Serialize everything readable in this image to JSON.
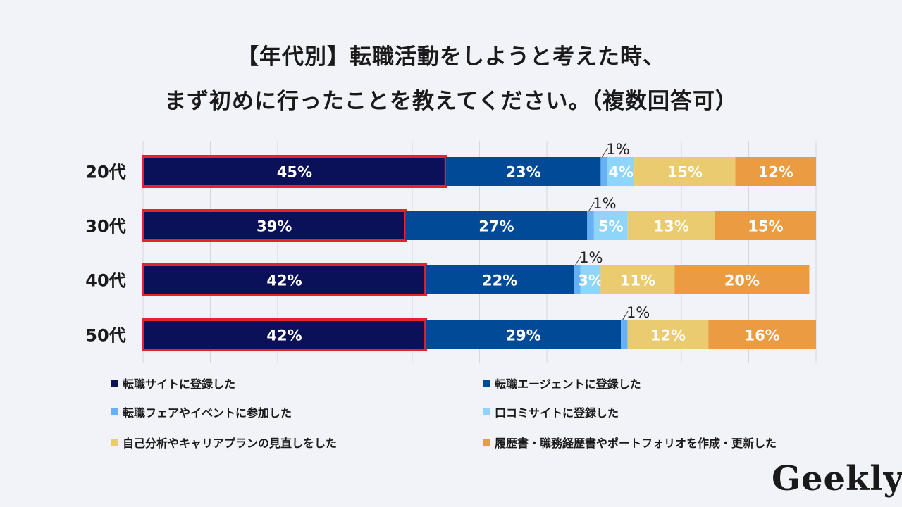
{
  "title_line1": "【年代別】転職活動をしようと考えた時、",
  "title_line2": "まず初めに行ったことを教えてください。（複数回答可）",
  "logo": "Geekly",
  "chart_data": {
    "type": "bar",
    "orientation": "horizontal-stacked-100",
    "categories": [
      "20代",
      "30代",
      "40代",
      "50代"
    ],
    "series": [
      {
        "name": "転職サイトに登録した",
        "color": "#0a1158",
        "values": [
          45,
          39,
          42,
          42
        ]
      },
      {
        "name": "転職エージェントに登録した",
        "color": "#004a98",
        "values": [
          23,
          27,
          22,
          29
        ]
      },
      {
        "name": "転職フェアやイベントに参加した",
        "color": "#66b1f5",
        "values": [
          1,
          1,
          1,
          1
        ]
      },
      {
        "name": "口コミサイトに登録した",
        "color": "#8ed5fa",
        "values": [
          4,
          5,
          3,
          0
        ]
      },
      {
        "name": "自己分析やキャリアプランの見直しをした",
        "color": "#eacb70",
        "values": [
          15,
          13,
          11,
          12
        ]
      },
      {
        "name": "履歴書・職務経歴書やポートフォリオを作成・更新した",
        "color": "#eb9c40",
        "values": [
          12,
          15,
          20,
          16
        ]
      }
    ],
    "xlim": [
      0,
      100
    ],
    "grid": true,
    "highlight_series": 0,
    "highlight_color": "#e8222a",
    "legend_position": "bottom"
  }
}
